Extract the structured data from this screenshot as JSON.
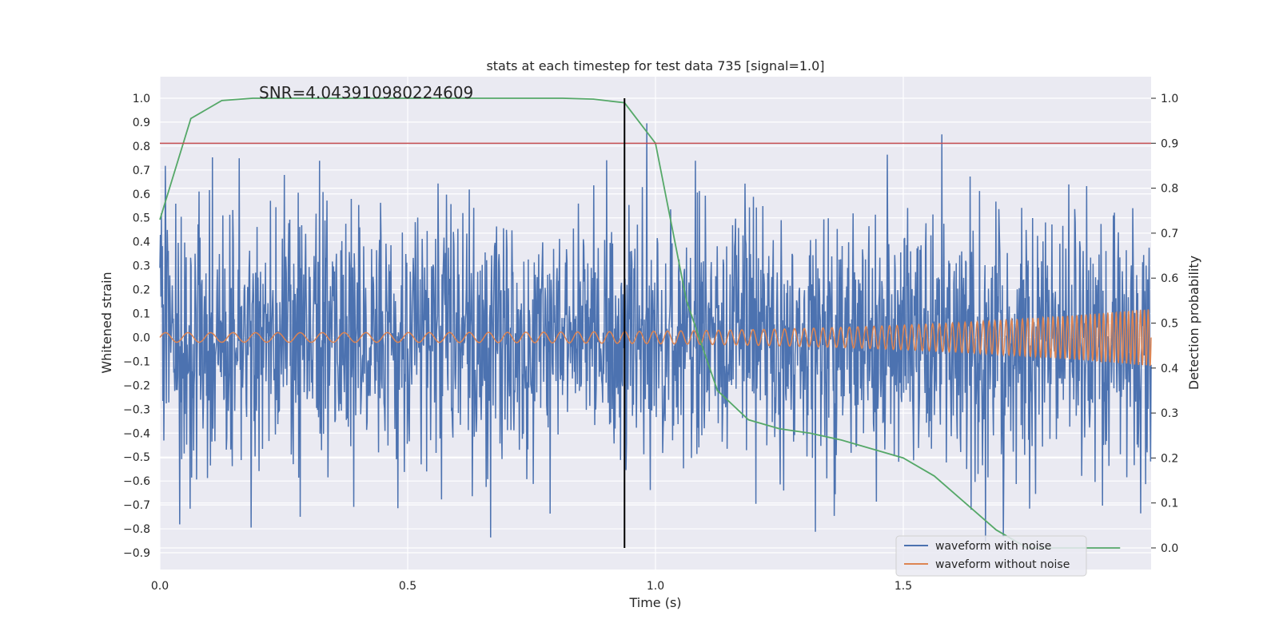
{
  "chart_data": {
    "type": "line",
    "title": "stats at each timestep for test data 735 [signal=1.0]",
    "xlabel": "Time (s)",
    "ylabel_left": "Whitened strain",
    "ylabel_right": "Detection probability",
    "annotation": "SNR=4.043910980224609",
    "xlim": [
      0.0,
      2.0
    ],
    "ylim_left": [
      -0.97,
      1.09
    ],
    "ylim_right": [
      -0.048,
      1.048
    ],
    "x_ticks": [
      0.0,
      0.5,
      1.0,
      1.5
    ],
    "x_tick_labels": [
      "0.0",
      "0.5",
      "1.0",
      "1.5"
    ],
    "y_left_ticks": [
      1.0,
      0.9,
      0.8,
      0.7,
      0.6,
      0.5,
      0.4,
      0.3,
      0.2,
      0.1,
      0.0,
      -0.1,
      -0.2,
      -0.3,
      -0.4,
      -0.5,
      -0.6,
      -0.7,
      -0.8,
      -0.9
    ],
    "y_left_tick_labels": [
      "1.0",
      "0.9",
      "0.8",
      "0.7",
      "0.6",
      "0.5",
      "0.4",
      "0.3",
      "0.2",
      "0.1",
      "0.0",
      "−0.1",
      "−0.2",
      "−0.3",
      "−0.4",
      "−0.5",
      "−0.6",
      "−0.7",
      "−0.8",
      "−0.9"
    ],
    "y_right_ticks": [
      1.0,
      0.9,
      0.8,
      0.7,
      0.6,
      0.5,
      0.4,
      0.3,
      0.2,
      0.1,
      0.0
    ],
    "y_right_tick_labels": [
      "1.0",
      "0.9",
      "0.8",
      "0.7",
      "0.6",
      "0.5",
      "0.4",
      "0.3",
      "0.2",
      "0.1",
      "0.0"
    ],
    "grid": true,
    "legend_position": "lower-right",
    "series": [
      {
        "name": "waveform with noise",
        "axis": "left",
        "color": "#4c72b0",
        "kind": "noise",
        "samples": 2000,
        "amplitude_range": [
          -0.88,
          1.0
        ],
        "sigma": 0.27,
        "seed": 735
      },
      {
        "name": "waveform without noise",
        "axis": "left",
        "color": "#dd8452",
        "kind": "chirp",
        "amplitude_start": 0.02,
        "amplitude_end": 0.12,
        "frequency_start_hz": 22,
        "frequency_end_hz": 130
      },
      {
        "name": "detection probability",
        "axis": "right",
        "color": "#55a868",
        "x": [
          0.0,
          0.0625,
          0.125,
          0.1875,
          0.25,
          0.3125,
          0.375,
          0.4375,
          0.5,
          0.5625,
          0.625,
          0.6875,
          0.75,
          0.8125,
          0.875,
          0.9375,
          1.0,
          1.0625,
          1.125,
          1.1875,
          1.25,
          1.3125,
          1.375,
          1.4375,
          1.5,
          1.5625,
          1.625,
          1.6875,
          1.75,
          1.8125,
          1.875,
          1.9375
        ],
        "values": [
          0.73,
          0.955,
          0.995,
          1.0,
          1.0,
          1.0,
          1.0,
          1.0,
          1.0,
          1.0,
          1.0,
          1.0,
          1.0,
          1.0,
          0.998,
          0.99,
          0.9,
          0.55,
          0.35,
          0.285,
          0.265,
          0.255,
          0.24,
          0.22,
          0.2,
          0.16,
          0.1,
          0.04,
          0.0,
          0.0,
          0.0,
          0.0
        ]
      }
    ],
    "threshold": {
      "value_right": 0.9,
      "color": "#c44e52"
    },
    "marker_line": {
      "x": 0.9375,
      "y_from_left": -0.88,
      "y_to_left": 1.0,
      "color": "#000000"
    }
  }
}
